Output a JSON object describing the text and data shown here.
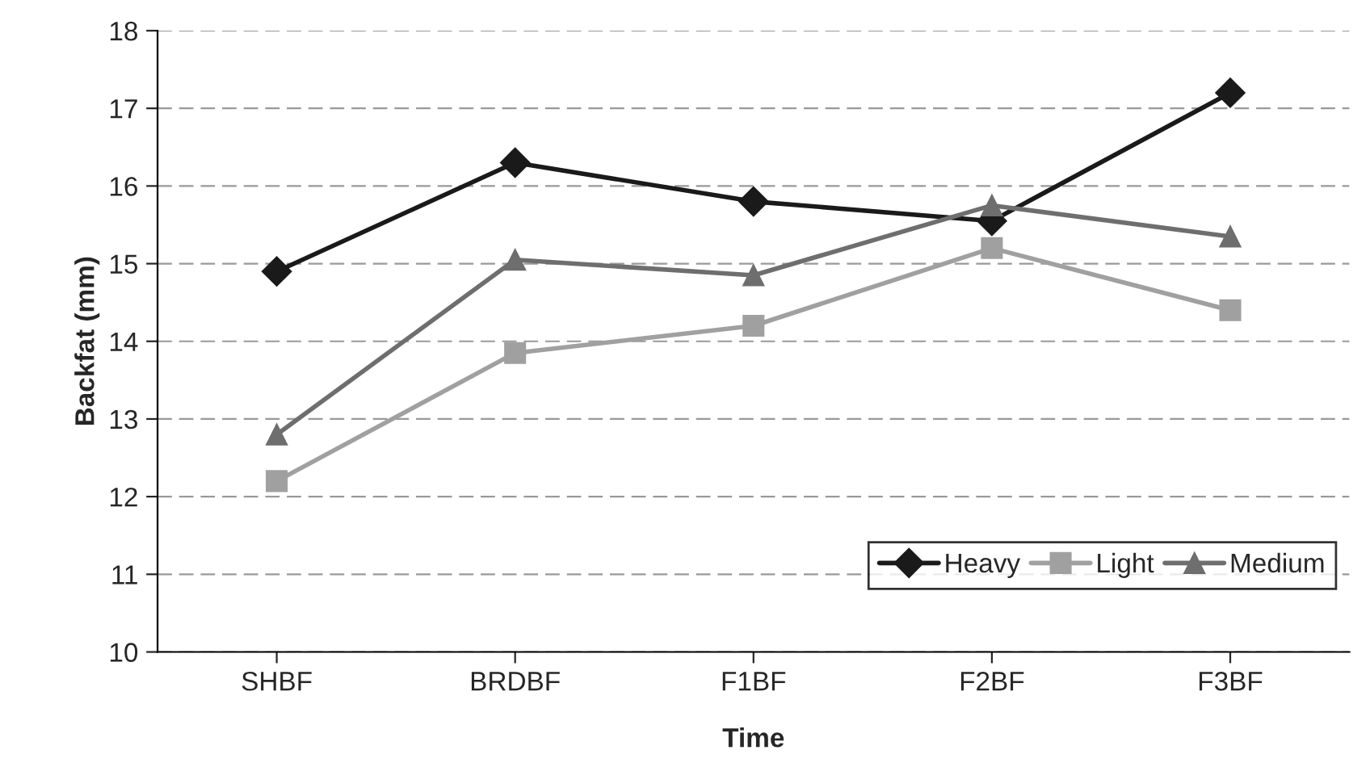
{
  "chart_data": {
    "type": "line",
    "xlabel": "Time",
    "ylabel": "Backfat (mm)",
    "categories": [
      "SHBF",
      "BRDBF",
      "F1BF",
      "F2BF",
      "F3BF"
    ],
    "series": [
      {
        "name": "Heavy",
        "color": "#1a1a1a",
        "marker": "diamond",
        "values": [
          14.9,
          16.3,
          15.8,
          15.55,
          17.2
        ]
      },
      {
        "name": "Light",
        "color": "#a0a0a0",
        "marker": "square",
        "values": [
          12.2,
          13.85,
          14.2,
          15.2,
          14.4
        ]
      },
      {
        "name": "Medium",
        "color": "#6e6e6e",
        "marker": "triangle",
        "values": [
          12.8,
          15.05,
          14.85,
          15.75,
          15.35
        ]
      }
    ],
    "ylim": [
      10,
      18
    ],
    "yticks": [
      10,
      11,
      12,
      13,
      14,
      15,
      16,
      17,
      18
    ],
    "grid": "y",
    "legend": "bottom right",
    "line_style": "solid"
  }
}
